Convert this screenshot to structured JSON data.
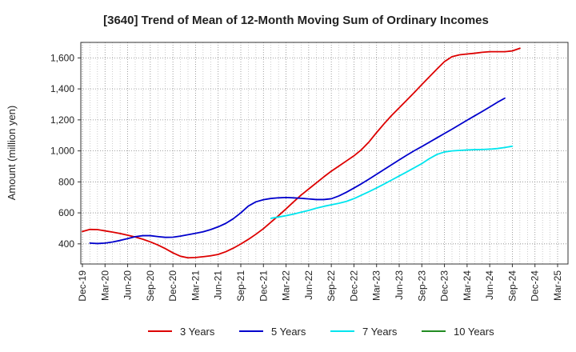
{
  "chart_data": {
    "type": "line",
    "title": "[3640]  Trend of Mean of 12-Month Moving Sum of Ordinary Incomes",
    "xlabel": "",
    "ylabel": "Amount (million yen)",
    "ylim": [
      270,
      1700
    ],
    "yticks": [
      400,
      600,
      800,
      1000,
      1200,
      1400,
      1600
    ],
    "ytick_labels": [
      "400",
      "600",
      "800",
      "1,000",
      "1,200",
      "1,400",
      "1,600"
    ],
    "xtick_labels": [
      "Dec-19",
      "Mar-20",
      "Jun-20",
      "Sep-20",
      "Dec-20",
      "Mar-21",
      "Jun-21",
      "Sep-21",
      "Dec-21",
      "Mar-22",
      "Jun-22",
      "Sep-22",
      "Dec-22",
      "Mar-23",
      "Jun-23",
      "Sep-23",
      "Dec-23",
      "Mar-24",
      "Jun-24",
      "Sep-24",
      "Dec-24",
      "Mar-25"
    ],
    "grid": true,
    "legend_position": "bottom",
    "series": [
      {
        "name": "3 Years",
        "color": "#dd0000",
        "start_index": 0,
        "values": [
          480,
          493,
          492,
          484,
          476,
          467,
          456,
          444,
          430,
          413,
          393,
          369,
          342,
          320,
          310,
          312,
          317,
          323,
          332,
          349,
          372,
          399,
          429,
          462,
          498,
          540,
          582,
          626,
          671,
          715,
          754,
          793,
          832,
          869,
          902,
          935,
          968,
          1008,
          1058,
          1118,
          1175,
          1229,
          1278,
          1327,
          1377,
          1428,
          1478,
          1528,
          1576,
          1608,
          1620,
          1625,
          1630,
          1636,
          1640,
          1640,
          1640,
          1645,
          1662
        ]
      },
      {
        "name": "5 Years",
        "color": "#0000cc",
        "start_index": 1,
        "values": [
          405,
          402,
          405,
          412,
          422,
          434,
          446,
          453,
          453,
          447,
          442,
          443,
          450,
          459,
          468,
          478,
          492,
          510,
          532,
          562,
          600,
          644,
          671,
          685,
          693,
          697,
          699,
          697,
          694,
          690,
          686,
          686,
          691,
          709,
          733,
          760,
          788,
          818,
          849,
          880,
          911,
          942,
          972,
          1001,
          1028,
          1056,
          1084,
          1112,
          1140,
          1169,
          1198,
          1226,
          1254,
          1283,
          1313,
          1340
        ]
      },
      {
        "name": "7 Years",
        "color": "#00e5ee",
        "start_index": 25,
        "values": [
          565,
          573,
          582,
          592,
          604,
          616,
          630,
          642,
          652,
          662,
          674,
          692,
          714,
          737,
          761,
          786,
          812,
          838,
          864,
          891,
          918,
          950,
          977,
          993,
          1000,
          1003,
          1006,
          1008,
          1009,
          1011,
          1015,
          1022,
          1030
        ]
      },
      {
        "name": "10 Years",
        "color": "#228b22",
        "start_index": 0,
        "values": []
      }
    ]
  }
}
